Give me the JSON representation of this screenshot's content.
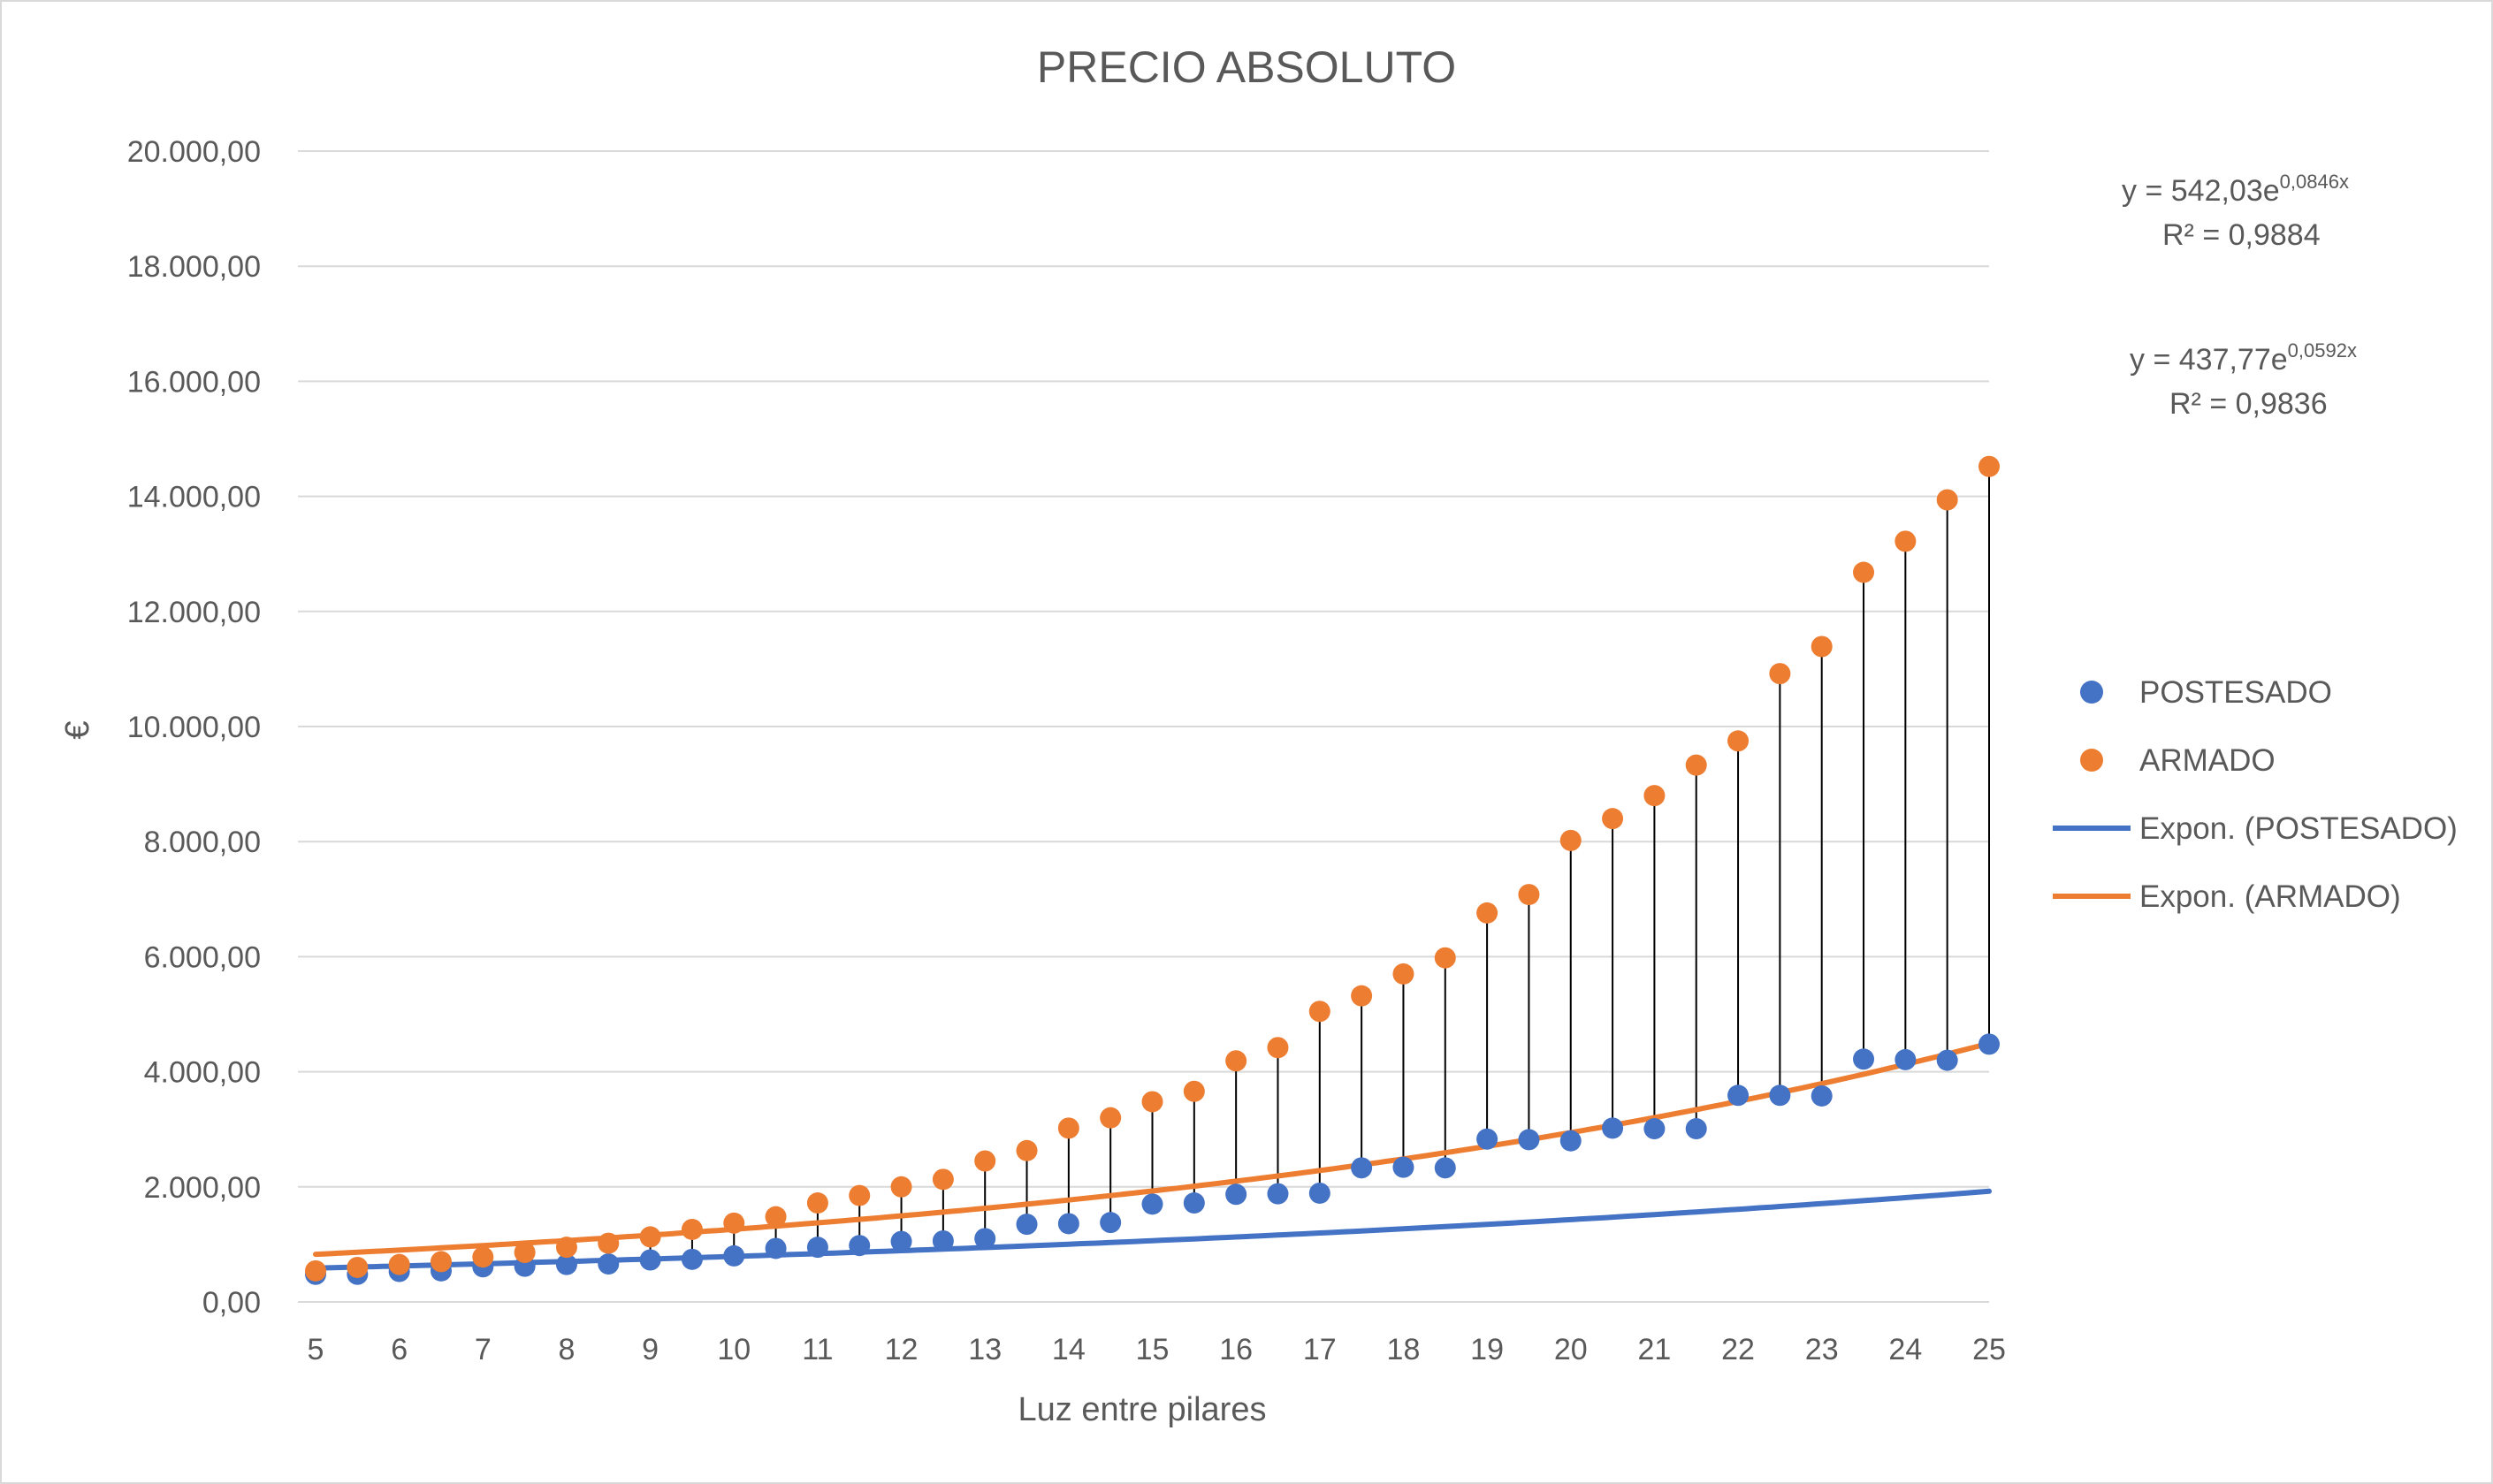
{
  "chart_data": {
    "type": "scatter",
    "title": "PRECIO ABSOLUTO",
    "xlabel": "Luz entre pilares",
    "ylabel": "€",
    "xlim": [
      5,
      25
    ],
    "ylim": [
      0,
      20000
    ],
    "x_ticks": [
      "5",
      "6",
      "7",
      "8",
      "9",
      "10",
      "11",
      "12",
      "13",
      "14",
      "15",
      "16",
      "17",
      "18",
      "19",
      "20",
      "21",
      "22",
      "23",
      "24",
      "25"
    ],
    "y_ticks": [
      "0,00",
      "2.000,00",
      "4.000,00",
      "6.000,00",
      "8.000,00",
      "10.000,00",
      "12.000,00",
      "14.000,00",
      "16.000,00",
      "18.000,00",
      "20.000,00"
    ],
    "grid": "horizontal",
    "legend_position": "right",
    "drop_lines": true,
    "x": [
      5,
      5.5,
      6,
      6.5,
      7,
      7.5,
      8,
      8.5,
      9,
      9.5,
      10,
      10.5,
      11,
      11.5,
      12,
      12.5,
      13,
      13.5,
      14,
      14.5,
      15,
      15.5,
      16,
      16.5,
      17,
      17.5,
      18,
      18.5,
      19,
      19.5,
      20,
      20.5,
      21,
      21.5,
      22,
      22.5,
      23,
      23.5,
      24,
      24.5,
      25
    ],
    "series": [
      {
        "name": "POSTESADO",
        "color": "#4472C4",
        "values": [
          480,
          480,
          530,
          540,
          610,
          620,
          650,
          660,
          730,
          740,
          800,
          930,
          950,
          980,
          1050,
          1060,
          1100,
          1350,
          1360,
          1380,
          1700,
          1720,
          1870,
          1880,
          1890,
          2330,
          2340,
          2330,
          2830,
          2820,
          2800,
          3020,
          3010,
          3010,
          3590,
          3590,
          3580,
          4220,
          4210,
          4200,
          4480
        ]
      },
      {
        "name": "ARMADO",
        "color": "#ED7D31",
        "values": [
          540,
          600,
          650,
          700,
          780,
          860,
          950,
          1020,
          1130,
          1260,
          1370,
          1480,
          1720,
          1850,
          2000,
          2130,
          2450,
          2630,
          3020,
          3200,
          3480,
          3660,
          4190,
          4420,
          5050,
          5320,
          5700,
          5980,
          6760,
          7080,
          8020,
          8400,
          8800,
          9330,
          9750,
          10920,
          11390,
          12680,
          13220,
          13940,
          14520
        ]
      }
    ],
    "trendlines": [
      {
        "name": "Expon. (POSTESADO)",
        "color": "#4472C4",
        "type": "exponential",
        "a": 437.77,
        "b": 0.0592,
        "eq_main": "y = 437,77e",
        "eq_exp": "0,0592x",
        "r2": "R² = 0,9836"
      },
      {
        "name": "Expon. (ARMADO)",
        "color": "#ED7D31",
        "type": "exponential",
        "a": 542.03,
        "b": 0.0846,
        "eq_main": "y = 542,03e",
        "eq_exp": "0,0846x",
        "r2": "R² = 0,9884"
      }
    ]
  }
}
